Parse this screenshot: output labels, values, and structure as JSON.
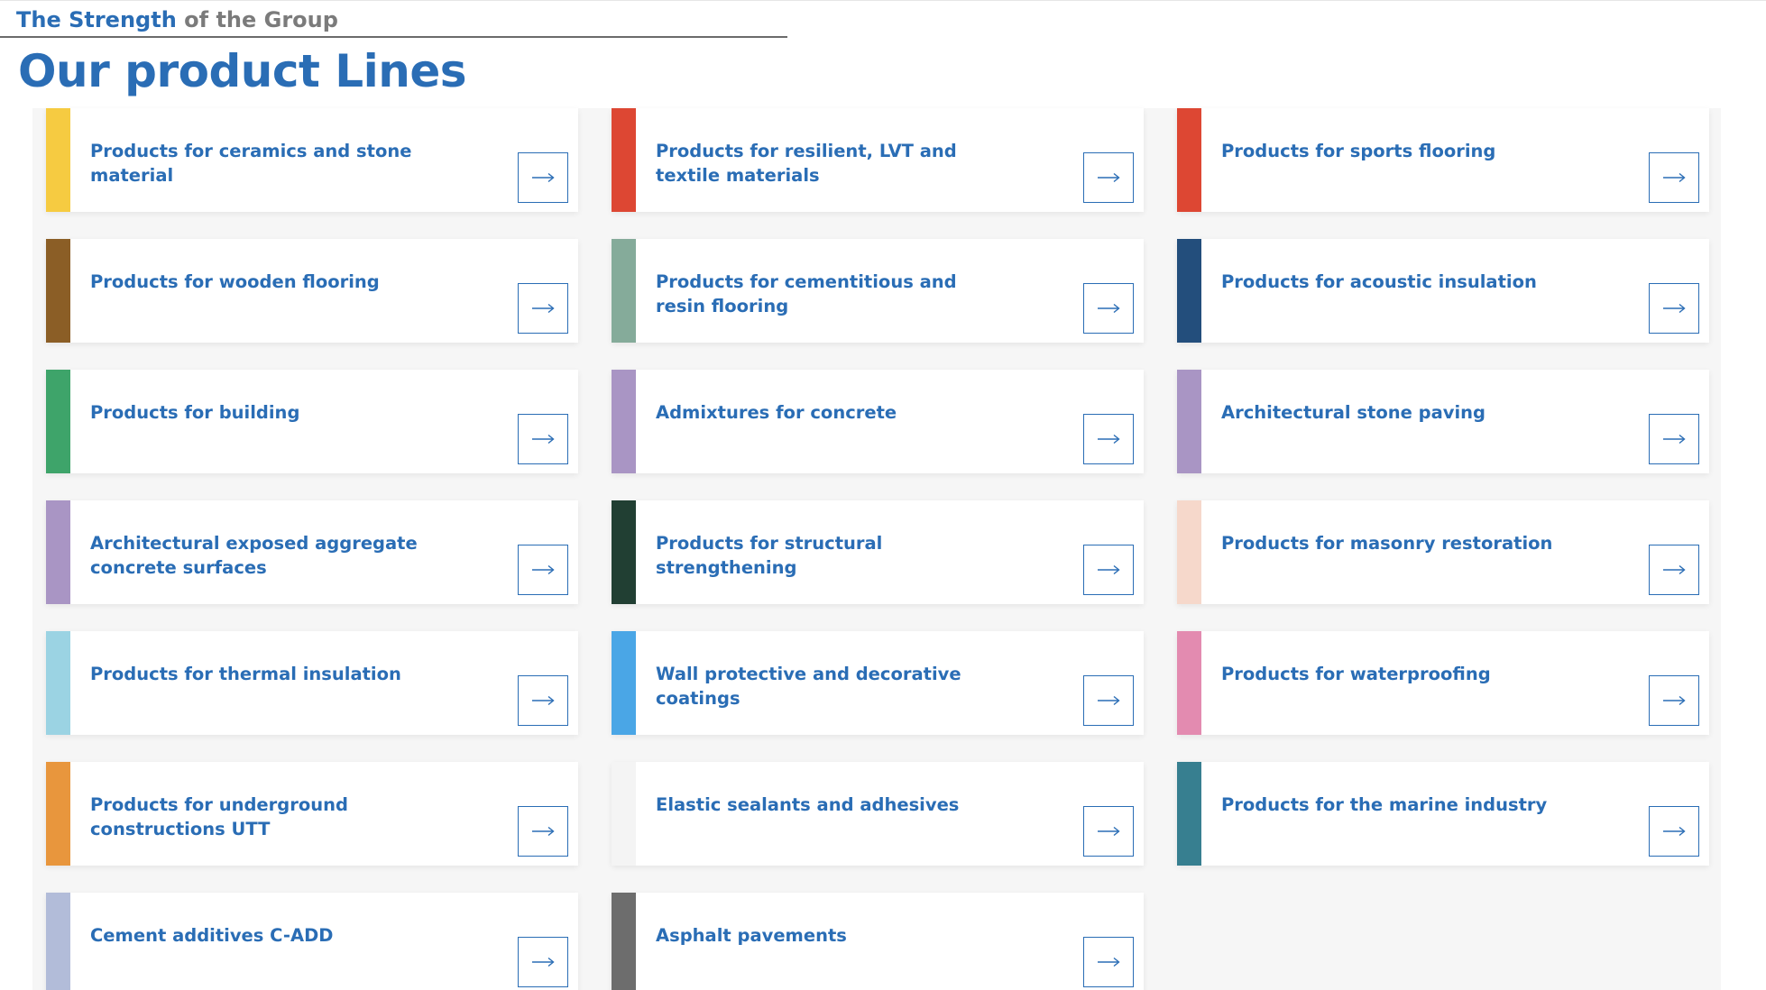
{
  "header": {
    "title_accent": "The Strength",
    "title_rest": " of the Group"
  },
  "page_title": "Our product Lines",
  "cards": [
    {
      "label": "Products for ceramics and stone material",
      "color": "#f6cb41"
    },
    {
      "label": "Products for resilient, LVT and textile materials",
      "color": "#dd4733"
    },
    {
      "label": "Products for sports flooring",
      "color": "#dd4733"
    },
    {
      "label": "Products for wooden flooring",
      "color": "#8b5e26"
    },
    {
      "label": "Products for cementitious and resin flooring",
      "color": "#85ab9a"
    },
    {
      "label": "Products for acoustic insulation",
      "color": "#234e7c"
    },
    {
      "label": "Products for building",
      "color": "#3ea46a"
    },
    {
      "label": "Admixtures for concrete",
      "color": "#a995c4"
    },
    {
      "label": "Architectural stone paving",
      "color": "#a995c4"
    },
    {
      "label": "Architectural exposed aggregate concrete surfaces",
      "color": "#a995c4"
    },
    {
      "label": "Products for structural strengthening",
      "color": "#213f33"
    },
    {
      "label": "Products for masonry restoration",
      "color": "#f6d8cb"
    },
    {
      "label": "Products for thermal insulation",
      "color": "#9bd3e3"
    },
    {
      "label": "Wall protective and decorative coatings",
      "color": "#4aa6e6"
    },
    {
      "label": "Products for waterproofing",
      "color": "#e38bb0"
    },
    {
      "label": "Products for underground constructions UTT",
      "color": "#e8963d"
    },
    {
      "label": "Elastic sealants and adhesives",
      "color": "#f4f4f4"
    },
    {
      "label": "Products for the marine industry",
      "color": "#377f90"
    },
    {
      "label": "Cement additives C-ADD",
      "color": "#b2bcd9"
    },
    {
      "label": "Asphalt pavements",
      "color": "#6d6d6d"
    }
  ]
}
